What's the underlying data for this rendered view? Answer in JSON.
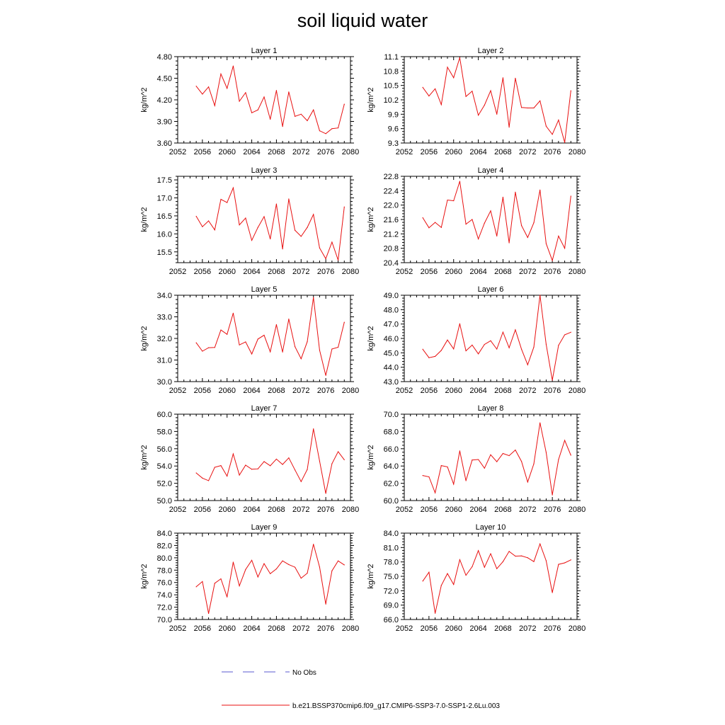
{
  "figure": {
    "title": "soil liquid water",
    "legend": [
      {
        "label": "No Obs",
        "color": "#5a5ad0",
        "style": "dashed"
      },
      {
        "label": "b.e21.BSSP370cmip6.f09_g17.CMIP6-SSP3-7.0-SSP1-2.6Lu.003",
        "color": "#e81010",
        "style": "solid"
      }
    ]
  },
  "chart_data": [
    {
      "type": "line",
      "title": "Layer 1",
      "ylabel": "kg/m^2",
      "xlim": [
        2052,
        2080
      ],
      "xticks": [
        2052,
        2056,
        2060,
        2064,
        2068,
        2072,
        2076,
        2080
      ],
      "ylim": [
        3.6,
        4.8
      ],
      "yticks": [
        "3.60",
        "3.90",
        "4.20",
        "4.50",
        "4.80"
      ],
      "series": [
        {
          "name": "b.e21.BSSP370cmip6.f09_g17.CMIP6-SSP3-7.0-SSP1-2.6Lu.003",
          "color": "#e81010",
          "x": [
            2055,
            2056,
            2057,
            2058,
            2059,
            2060,
            2061,
            2062,
            2063,
            2064,
            2065,
            2066,
            2067,
            2068,
            2069,
            2070,
            2071,
            2072,
            2073,
            2074,
            2075,
            2076,
            2077,
            2078,
            2079
          ],
          "y": [
            4.39,
            4.28,
            4.38,
            4.12,
            4.56,
            4.36,
            4.67,
            4.18,
            4.3,
            4.02,
            4.06,
            4.24,
            3.93,
            4.33,
            3.83,
            4.31,
            3.97,
            4.0,
            3.91,
            4.06,
            3.77,
            3.73,
            3.8,
            3.81,
            4.14
          ]
        }
      ]
    },
    {
      "type": "line",
      "title": "Layer 2",
      "ylabel": "kg/m^2",
      "xlim": [
        2052,
        2080
      ],
      "xticks": [
        2052,
        2056,
        2060,
        2064,
        2068,
        2072,
        2076,
        2080
      ],
      "ylim": [
        9.3,
        11.1
      ],
      "yticks": [
        "9.3",
        "9.6",
        "9.9",
        "10.2",
        "10.5",
        "10.8",
        "11.1"
      ],
      "series": [
        {
          "name": "b.e21.BSSP370cmip6.f09_g17.CMIP6-SSP3-7.0-SSP1-2.6Lu.003",
          "color": "#e81010",
          "x": [
            2055,
            2056,
            2057,
            2058,
            2059,
            2060,
            2061,
            2062,
            2063,
            2064,
            2065,
            2066,
            2067,
            2068,
            2069,
            2070,
            2071,
            2072,
            2073,
            2074,
            2075,
            2076,
            2077,
            2078,
            2079
          ],
          "y": [
            10.46,
            10.28,
            10.43,
            10.1,
            10.88,
            10.66,
            11.08,
            10.27,
            10.38,
            9.88,
            10.09,
            10.39,
            9.9,
            10.66,
            9.63,
            10.65,
            10.04,
            10.03,
            10.03,
            10.18,
            9.65,
            9.48,
            9.78,
            9.31,
            10.39
          ]
        }
      ]
    },
    {
      "type": "line",
      "title": "Layer 3",
      "ylabel": "kg/m^2",
      "xlim": [
        2052,
        2080
      ],
      "xticks": [
        2052,
        2056,
        2060,
        2064,
        2068,
        2072,
        2076,
        2080
      ],
      "ylim": [
        15.2,
        17.6
      ],
      "yticks": [
        "15.5",
        "16.0",
        "16.5",
        "17.0",
        "17.5"
      ],
      "series": [
        {
          "name": "b.e21.BSSP370cmip6.f09_g17.CMIP6-SSP3-7.0-SSP1-2.6Lu.003",
          "color": "#e81010",
          "x": [
            2055,
            2056,
            2057,
            2058,
            2059,
            2060,
            2061,
            2062,
            2063,
            2064,
            2065,
            2066,
            2067,
            2068,
            2069,
            2070,
            2071,
            2072,
            2073,
            2074,
            2075,
            2076,
            2077,
            2078,
            2079
          ],
          "y": [
            16.49,
            16.2,
            16.36,
            16.11,
            16.96,
            16.87,
            17.28,
            16.25,
            16.44,
            15.82,
            16.18,
            16.48,
            15.86,
            16.83,
            15.58,
            16.97,
            16.1,
            15.93,
            16.18,
            16.54,
            15.61,
            15.31,
            15.77,
            15.27,
            16.75
          ]
        }
      ]
    },
    {
      "type": "line",
      "title": "Layer 4",
      "ylabel": "kg/m^2",
      "xlim": [
        2052,
        2080
      ],
      "xticks": [
        2052,
        2056,
        2060,
        2064,
        2068,
        2072,
        2076,
        2080
      ],
      "ylim": [
        20.4,
        22.8
      ],
      "yticks": [
        "20.4",
        "20.8",
        "21.2",
        "21.6",
        "22.0",
        "22.4",
        "22.8"
      ],
      "series": [
        {
          "name": "b.e21.BSSP370cmip6.f09_g17.CMIP6-SSP3-7.0-SSP1-2.6Lu.003",
          "color": "#e81010",
          "x": [
            2055,
            2056,
            2057,
            2058,
            2059,
            2060,
            2061,
            2062,
            2063,
            2064,
            2065,
            2066,
            2067,
            2068,
            2069,
            2070,
            2071,
            2072,
            2073,
            2074,
            2075,
            2076,
            2077,
            2078,
            2079
          ],
          "y": [
            21.65,
            21.37,
            21.52,
            21.38,
            22.14,
            22.12,
            22.66,
            21.47,
            21.6,
            21.06,
            21.5,
            21.84,
            21.14,
            22.22,
            20.95,
            22.36,
            21.43,
            21.1,
            21.51,
            22.42,
            20.93,
            20.46,
            21.14,
            20.8,
            22.25
          ]
        }
      ]
    },
    {
      "type": "line",
      "title": "Layer 5",
      "ylabel": "kg/m^2",
      "xlim": [
        2052,
        2080
      ],
      "xticks": [
        2052,
        2056,
        2060,
        2064,
        2068,
        2072,
        2076,
        2080
      ],
      "ylim": [
        30.0,
        34.0
      ],
      "yticks": [
        "30.0",
        "31.0",
        "32.0",
        "33.0",
        "34.0"
      ],
      "series": [
        {
          "name": "b.e21.BSSP370cmip6.f09_g17.CMIP6-SSP3-7.0-SSP1-2.6Lu.003",
          "color": "#e81010",
          "x": [
            2055,
            2056,
            2057,
            2058,
            2059,
            2060,
            2061,
            2062,
            2063,
            2064,
            2065,
            2066,
            2067,
            2068,
            2069,
            2070,
            2071,
            2072,
            2073,
            2074,
            2075,
            2076,
            2077,
            2078,
            2079
          ],
          "y": [
            31.8,
            31.41,
            31.57,
            31.58,
            32.39,
            32.19,
            33.17,
            31.7,
            31.84,
            31.28,
            31.97,
            32.15,
            31.38,
            32.64,
            31.37,
            32.9,
            31.62,
            31.06,
            31.85,
            33.9,
            31.46,
            30.29,
            31.51,
            31.59,
            32.75
          ]
        }
      ]
    },
    {
      "type": "line",
      "title": "Layer 6",
      "ylabel": "kg/m^2",
      "xlim": [
        2052,
        2080
      ],
      "xticks": [
        2052,
        2056,
        2060,
        2064,
        2068,
        2072,
        2076,
        2080
      ],
      "ylim": [
        43.0,
        49.0
      ],
      "yticks": [
        "43.0",
        "44.0",
        "45.0",
        "46.0",
        "47.0",
        "48.0",
        "49.0"
      ],
      "series": [
        {
          "name": "b.e21.BSSP370cmip6.f09_g17.CMIP6-SSP3-7.0-SSP1-2.6Lu.003",
          "color": "#e81010",
          "x": [
            2055,
            2056,
            2057,
            2058,
            2059,
            2060,
            2061,
            2062,
            2063,
            2064,
            2065,
            2066,
            2067,
            2068,
            2069,
            2070,
            2071,
            2072,
            2073,
            2074,
            2075,
            2076,
            2077,
            2078,
            2079
          ],
          "y": [
            45.25,
            44.66,
            44.75,
            45.17,
            45.89,
            45.27,
            47.02,
            45.14,
            45.54,
            44.93,
            45.58,
            45.84,
            45.26,
            46.44,
            45.35,
            46.6,
            45.25,
            44.17,
            45.4,
            49.0,
            45.59,
            43.1,
            45.52,
            46.25,
            46.43
          ]
        }
      ]
    },
    {
      "type": "line",
      "title": "Layer 7",
      "ylabel": "kg/m^2",
      "xlim": [
        2052,
        2080
      ],
      "xticks": [
        2052,
        2056,
        2060,
        2064,
        2068,
        2072,
        2076,
        2080
      ],
      "ylim": [
        50.0,
        60.0
      ],
      "yticks": [
        "50.0",
        "52.0",
        "54.0",
        "56.0",
        "58.0",
        "60.0"
      ],
      "series": [
        {
          "name": "b.e21.BSSP370cmip6.f09_g17.CMIP6-SSP3-7.0-SSP1-2.6Lu.003",
          "color": "#e81010",
          "x": [
            2055,
            2056,
            2057,
            2058,
            2059,
            2060,
            2061,
            2062,
            2063,
            2064,
            2065,
            2066,
            2067,
            2068,
            2069,
            2070,
            2071,
            2072,
            2073,
            2074,
            2075,
            2076,
            2077,
            2078,
            2079
          ],
          "y": [
            53.2,
            52.6,
            52.3,
            53.85,
            54.05,
            52.83,
            55.4,
            52.95,
            54.1,
            53.62,
            53.67,
            54.52,
            54.03,
            54.8,
            54.18,
            54.94,
            53.55,
            52.2,
            53.6,
            58.3,
            54.57,
            50.83,
            54.27,
            55.66,
            54.72
          ]
        }
      ]
    },
    {
      "type": "line",
      "title": "Layer 8",
      "ylabel": "kg/m^2",
      "xlim": [
        2052,
        2080
      ],
      "xticks": [
        2052,
        2056,
        2060,
        2064,
        2068,
        2072,
        2076,
        2080
      ],
      "ylim": [
        60.0,
        70.0
      ],
      "yticks": [
        "60.0",
        "62.0",
        "64.0",
        "66.0",
        "68.0",
        "70.0"
      ],
      "series": [
        {
          "name": "b.e21.BSSP370cmip6.f09_g17.CMIP6-SSP3-7.0-SSP1-2.6Lu.003",
          "color": "#e81010",
          "x": [
            2055,
            2056,
            2057,
            2058,
            2059,
            2060,
            2061,
            2062,
            2063,
            2064,
            2065,
            2066,
            2067,
            2068,
            2069,
            2070,
            2071,
            2072,
            2073,
            2074,
            2075,
            2076,
            2077,
            2078,
            2079
          ],
          "y": [
            62.9,
            62.75,
            60.9,
            64.05,
            63.9,
            61.9,
            65.75,
            62.3,
            64.7,
            64.75,
            63.75,
            65.3,
            64.5,
            65.45,
            65.2,
            65.85,
            64.53,
            62.15,
            64.25,
            69.0,
            65.57,
            60.65,
            64.75,
            66.97,
            65.25
          ]
        }
      ]
    },
    {
      "type": "line",
      "title": "Layer 9",
      "ylabel": "kg/m^2",
      "xlim": [
        2052,
        2080
      ],
      "xticks": [
        2052,
        2056,
        2060,
        2064,
        2068,
        2072,
        2076,
        2080
      ],
      "ylim": [
        70.0,
        84.0
      ],
      "yticks": [
        "70.0",
        "72.0",
        "74.0",
        "76.0",
        "78.0",
        "80.0",
        "82.0",
        "84.0"
      ],
      "series": [
        {
          "name": "b.e21.BSSP370cmip6.f09_g17.CMIP6-SSP3-7.0-SSP1-2.6Lu.003",
          "color": "#e81010",
          "x": [
            2055,
            2056,
            2057,
            2058,
            2059,
            2060,
            2061,
            2062,
            2063,
            2064,
            2065,
            2066,
            2067,
            2068,
            2069,
            2070,
            2071,
            2072,
            2073,
            2074,
            2075,
            2076,
            2077,
            2078,
            2079
          ],
          "y": [
            75.3,
            76.15,
            70.98,
            75.87,
            76.6,
            73.65,
            79.3,
            75.45,
            78.1,
            79.6,
            76.9,
            79.05,
            77.43,
            78.2,
            79.5,
            78.9,
            78.48,
            76.7,
            77.5,
            82.2,
            78.5,
            72.5,
            77.9,
            79.5,
            78.85
          ]
        }
      ]
    },
    {
      "type": "line",
      "title": "Layer 10",
      "ylabel": "kg/m^2",
      "xlim": [
        2052,
        2080
      ],
      "xticks": [
        2052,
        2056,
        2060,
        2064,
        2068,
        2072,
        2076,
        2080
      ],
      "ylim": [
        66.0,
        84.0
      ],
      "yticks": [
        "66.0",
        "69.0",
        "72.0",
        "75.0",
        "78.0",
        "81.0",
        "84.0"
      ],
      "series": [
        {
          "name": "b.e21.BSSP370cmip6.f09_g17.CMIP6-SSP3-7.0-SSP1-2.6Lu.003",
          "color": "#e81010",
          "x": [
            2055,
            2056,
            2057,
            2058,
            2059,
            2060,
            2061,
            2062,
            2063,
            2064,
            2065,
            2066,
            2067,
            2068,
            2069,
            2070,
            2071,
            2072,
            2073,
            2074,
            2075,
            2076,
            2077,
            2078,
            2079
          ],
          "y": [
            74.0,
            75.85,
            67.3,
            73.1,
            75.57,
            73.3,
            78.46,
            75.22,
            77.0,
            80.35,
            76.89,
            79.7,
            76.6,
            78.05,
            80.2,
            79.2,
            79.27,
            78.87,
            78.07,
            81.76,
            78.25,
            71.6,
            77.5,
            77.8,
            78.43
          ]
        }
      ]
    }
  ]
}
